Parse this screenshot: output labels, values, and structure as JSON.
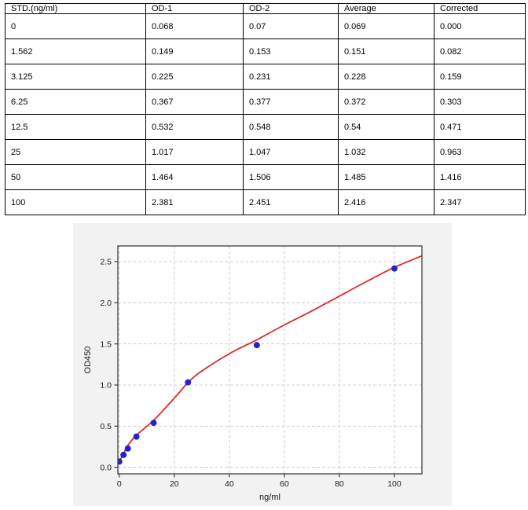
{
  "page": {
    "background": "#ffffff"
  },
  "table": {
    "columns": [
      "STD.(ng/ml)",
      "OD-1",
      "OD-2",
      "Average",
      "Corrected"
    ],
    "rows": [
      [
        "0",
        "0.068",
        "0.07",
        "0.069",
        "0.000"
      ],
      [
        "1.562",
        "0.149",
        "0.153",
        "0.151",
        "0.082"
      ],
      [
        "3.125",
        "0.225",
        "0.231",
        "0.228",
        "0.159"
      ],
      [
        "6.25",
        "0.367",
        "0.377",
        "0.372",
        "0.303"
      ],
      [
        "12.5",
        "0.532",
        "0.548",
        "0.54",
        "0.471"
      ],
      [
        "25",
        "1.017",
        "1.047",
        "1.032",
        "0.963"
      ],
      [
        "50",
        "1.464",
        "1.506",
        "1.485",
        "1.416"
      ],
      [
        "100",
        "2.381",
        "2.451",
        "2.416",
        "2.347"
      ]
    ]
  },
  "chart_data": {
    "type": "scatter",
    "title": "",
    "xlabel": "ng/ml",
    "ylabel": "OD450",
    "xlim": [
      0,
      110
    ],
    "ylim": [
      -0.08,
      2.69
    ],
    "x_ticks": [
      0,
      20,
      40,
      60,
      80,
      100
    ],
    "x_tick_labels": [
      "0",
      "20",
      "40",
      "60",
      "80",
      "100"
    ],
    "y_ticks": [
      0,
      0.5,
      1,
      1.5,
      2,
      2.5
    ],
    "y_tick_labels": [
      "0.0",
      "0.5",
      "1.0",
      "1.5",
      "2.0",
      "2.5"
    ],
    "grid": true,
    "grid_style": "dashed",
    "legend_position": "none",
    "series": [
      {
        "name": "standard-points",
        "type": "scatter",
        "color": "#2323cc",
        "x": [
          0,
          1.562,
          3.125,
          6.25,
          12.5,
          25,
          50,
          100
        ],
        "y": [
          0.069,
          0.151,
          0.228,
          0.372,
          0.54,
          1.032,
          1.485,
          2.416
        ]
      },
      {
        "name": "fit-curve",
        "type": "line",
        "color": "#e02a2a",
        "x": [
          0,
          1.5,
          3,
          6.25,
          12.5,
          20,
          25,
          30,
          40,
          50,
          60,
          70,
          80,
          90,
          100,
          110
        ],
        "y": [
          0.07,
          0.16,
          0.26,
          0.39,
          0.57,
          0.84,
          1.03,
          1.17,
          1.38,
          1.55,
          1.73,
          1.9,
          2.08,
          2.26,
          2.43,
          2.57
        ]
      }
    ],
    "colors": {
      "figure_bg": "#f2f2f2",
      "plot_bg": "#ffffff",
      "grid": "#c9c9c9",
      "spine": "#3f3f3f",
      "text": "#1a1a1a"
    }
  }
}
